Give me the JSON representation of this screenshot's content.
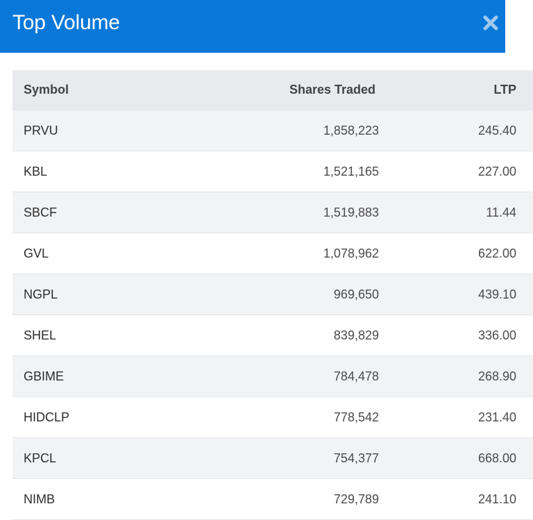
{
  "header": {
    "title": "Top Volume",
    "close_icon": "close-x-icon",
    "background_color": "#0a78d9"
  },
  "table": {
    "columns": {
      "symbol": "Symbol",
      "shares_traded": "Shares Traded",
      "ltp": "LTP"
    },
    "rows": [
      {
        "symbol": "PRVU",
        "shares_traded": "1,858,223",
        "ltp": "245.40"
      },
      {
        "symbol": "KBL",
        "shares_traded": "1,521,165",
        "ltp": "227.00"
      },
      {
        "symbol": "SBCF",
        "shares_traded": "1,519,883",
        "ltp": "11.44"
      },
      {
        "symbol": "GVL",
        "shares_traded": "1,078,962",
        "ltp": "622.00"
      },
      {
        "symbol": "NGPL",
        "shares_traded": "969,650",
        "ltp": "439.10"
      },
      {
        "symbol": "SHEL",
        "shares_traded": "839,829",
        "ltp": "336.00"
      },
      {
        "symbol": "GBIME",
        "shares_traded": "784,478",
        "ltp": "268.90"
      },
      {
        "symbol": "HIDCLP",
        "shares_traded": "778,542",
        "ltp": "231.40"
      },
      {
        "symbol": "KPCL",
        "shares_traded": "754,377",
        "ltp": "668.00"
      },
      {
        "symbol": "NIMB",
        "shares_traded": "729,789",
        "ltp": "241.10"
      }
    ]
  }
}
